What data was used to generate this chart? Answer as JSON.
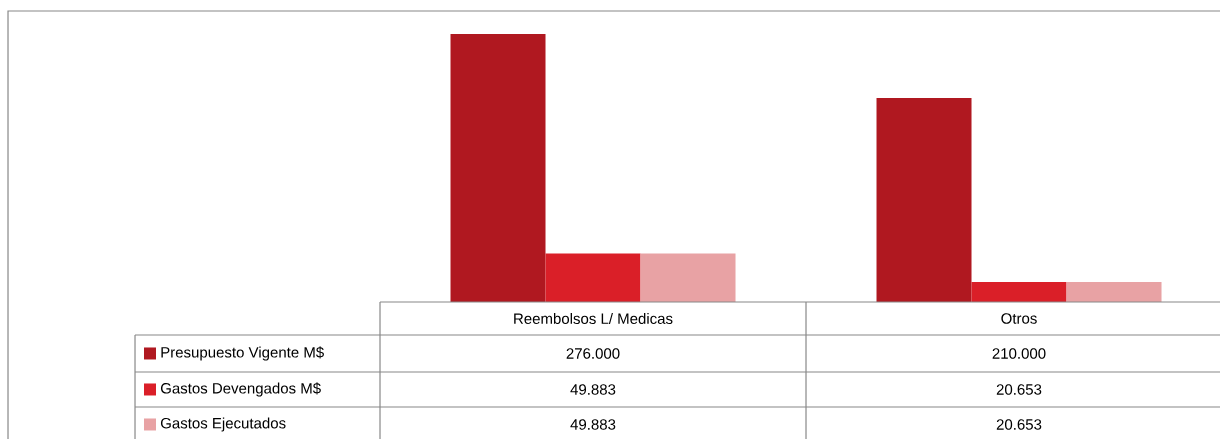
{
  "chart_data": {
    "type": "bar",
    "categories": [
      "Reembolsos L/ Medicas",
      "Otros"
    ],
    "series": [
      {
        "name": "Presupuesto Vigente M$",
        "color": "#b01820",
        "values": [
          276000,
          210000
        ],
        "value_labels": [
          "276.000",
          "210.000"
        ]
      },
      {
        "name": "Gastos Devengados M$",
        "color": "#da1f28",
        "values": [
          49883,
          20653
        ],
        "value_labels": [
          "49.883",
          "20.653"
        ]
      },
      {
        "name": "Gastos Ejecutados",
        "color": "#e8a2a4",
        "values": [
          49883,
          20653
        ],
        "value_labels": [
          "49.883",
          "20.653"
        ]
      }
    ],
    "legend": "bottom"
  }
}
